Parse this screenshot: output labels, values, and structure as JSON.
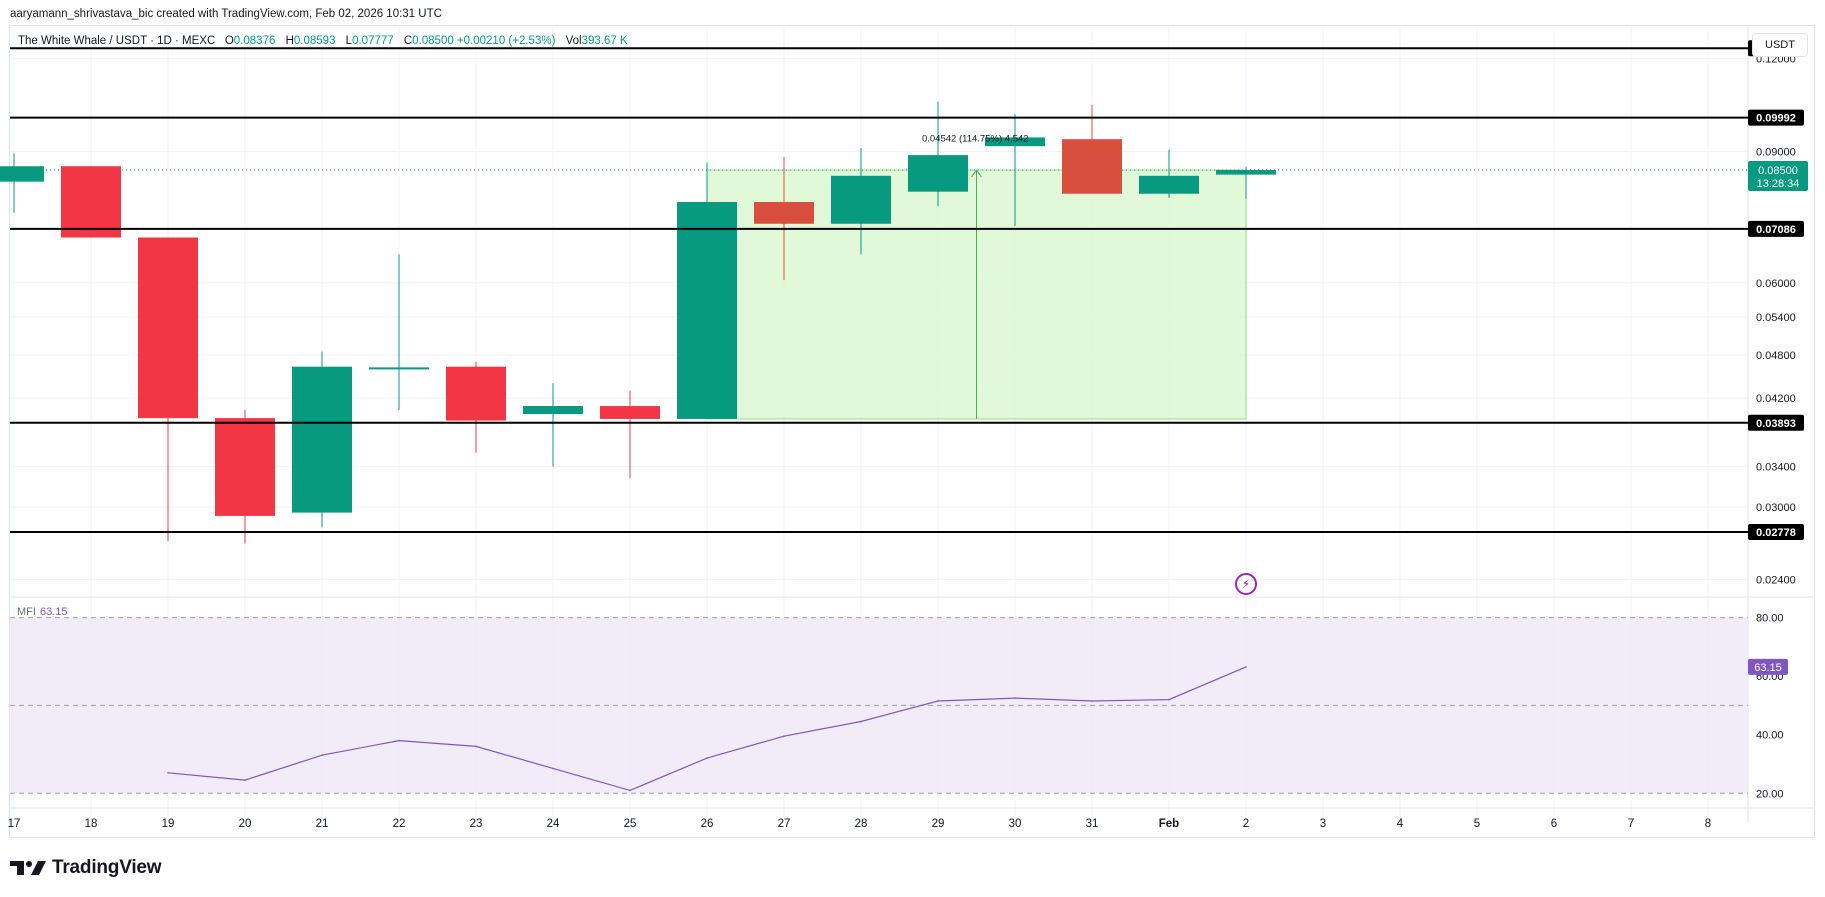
{
  "credit": "aaryamann_shrivastava_bic created with TradingView.com, Feb 02, 2026 10:31 UTC",
  "legend": {
    "symbol": "The White Whale / USDT · 1D · MEXC",
    "o_label": "O",
    "o": "0.08376",
    "h_label": "H",
    "h": "0.08593",
    "l_label": "L",
    "l": "0.07777",
    "c_label": "C",
    "c": "0.08500 +0.00210 (+2.53%)",
    "vol_label": "Vol",
    "vol": "393.67 K"
  },
  "currency": "USDT",
  "mfi": {
    "label": "MFI",
    "value": "63.15"
  },
  "brand": "TradingView",
  "colors": {
    "up": "#089981",
    "down": "#f23645",
    "down_dark": "#d94f3d",
    "grid": "#f0f3fa",
    "level": "#000000",
    "mfi_line": "#7e57c2",
    "mfi_band": "#ede7f6",
    "measure_fill": "#dcf9d3",
    "measure_border": "#7ddc6b"
  },
  "chart_data": [
    {
      "type": "candlestick",
      "title": "The White Whale / USDT · 1D · MEXC",
      "x": [
        "17",
        "18",
        "19",
        "20",
        "21",
        "22",
        "23",
        "24",
        "25",
        "26",
        "27",
        "28",
        "29",
        "30",
        "31",
        "Feb",
        "2",
        "3",
        "4",
        "5",
        "6",
        "7",
        "8"
      ],
      "y_ticks": [
        "0.12000",
        "0.09000",
        "0.06000",
        "0.05400",
        "0.04800",
        "0.04200",
        "0.03400",
        "0.03000",
        "0.02400"
      ],
      "y_scale": "log",
      "ylim": [
        0.0228,
        0.131
      ],
      "candles": [
        {
          "x": "17",
          "o": 0.082,
          "h": 0.0895,
          "l": 0.0745,
          "c": 0.086
        },
        {
          "x": "18",
          "o": 0.086,
          "h": 0.086,
          "l": 0.069,
          "c": 0.069
        },
        {
          "x": "19",
          "o": 0.069,
          "h": 0.069,
          "l": 0.027,
          "c": 0.0395
        },
        {
          "x": "20",
          "o": 0.0395,
          "h": 0.0405,
          "l": 0.0268,
          "c": 0.0292
        },
        {
          "x": "21",
          "o": 0.0295,
          "h": 0.0485,
          "l": 0.0282,
          "c": 0.0463
        },
        {
          "x": "22",
          "o": 0.046,
          "h": 0.0655,
          "l": 0.0405,
          "c": 0.0462
        },
        {
          "x": "23",
          "o": 0.0463,
          "h": 0.047,
          "l": 0.0355,
          "c": 0.0392
        },
        {
          "x": "24",
          "o": 0.04,
          "h": 0.044,
          "l": 0.034,
          "c": 0.041
        },
        {
          "x": "25",
          "o": 0.041,
          "h": 0.043,
          "l": 0.0328,
          "c": 0.0394
        },
        {
          "x": "26",
          "o": 0.0394,
          "h": 0.087,
          "l": 0.0394,
          "c": 0.077
        },
        {
          "x": "27",
          "o": 0.077,
          "h": 0.0885,
          "l": 0.0605,
          "c": 0.072
        },
        {
          "x": "28",
          "o": 0.072,
          "h": 0.091,
          "l": 0.0655,
          "c": 0.0835
        },
        {
          "x": "29",
          "o": 0.0795,
          "h": 0.105,
          "l": 0.076,
          "c": 0.089
        },
        {
          "x": "30",
          "o": 0.0915,
          "h": 0.101,
          "l": 0.0715,
          "c": 0.094
        },
        {
          "x": "31",
          "o": 0.0935,
          "h": 0.104,
          "l": 0.0795,
          "c": 0.079
        },
        {
          "x": "Feb",
          "o": 0.079,
          "h": 0.0905,
          "l": 0.078,
          "c": 0.0835
        },
        {
          "x": "2",
          "o": 0.0838,
          "h": 0.0859,
          "l": 0.0778,
          "c": 0.085
        }
      ],
      "levels": [
        "0.12381",
        "0.09992",
        "0.07086",
        "0.03893",
        "0.02778"
      ],
      "last_price": "0.08500",
      "countdown": "13:28:34",
      "measure": {
        "from_x": "26",
        "to_x": "2",
        "label": "0.04542 (114.75%) 4,542"
      }
    },
    {
      "type": "line",
      "title": "MFI",
      "x": [
        "19",
        "20",
        "21",
        "22",
        "23",
        "24",
        "25",
        "26",
        "27",
        "28",
        "29",
        "30",
        "31",
        "Feb",
        "2"
      ],
      "values": [
        27.0,
        24.5,
        33.0,
        38.0,
        36.0,
        28.5,
        21.0,
        32.0,
        39.5,
        44.5,
        51.5,
        52.5,
        51.5,
        52.0,
        63.15
      ],
      "y_ticks": [
        "80.00",
        "60.00",
        "40.00",
        "20.00"
      ],
      "ylim": [
        16,
        86
      ],
      "band": [
        20,
        80
      ],
      "last_value": "63.15"
    }
  ]
}
